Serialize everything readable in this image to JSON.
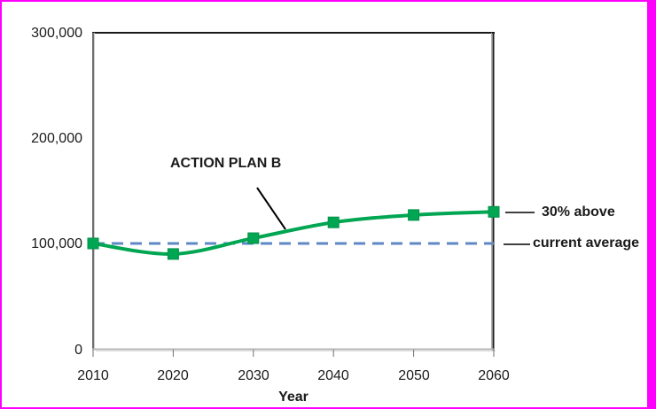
{
  "colors": {
    "frame_border": "#FF00FF",
    "series_green": "#00A651",
    "series_green_marker_border": "#00914A",
    "dashed_blue": "#5E88C4",
    "text": "#1a1a1a",
    "annotation_line": "#000000"
  },
  "chart_data": {
    "type": "line",
    "title": "",
    "xlabel": "Year",
    "ylabel": "",
    "x": [
      2010,
      2020,
      2030,
      2040,
      2050,
      2060
    ],
    "xtick_labels": [
      "2010",
      "2020",
      "2030",
      "2040",
      "2050",
      "2060"
    ],
    "yticks_top_to_bottom": [
      300000,
      200000,
      100000,
      0
    ],
    "ytick_labels": [
      "300,000",
      "200,000",
      "100,000",
      "0"
    ],
    "ylim": [
      0,
      300000
    ],
    "grid": false,
    "legend": "none",
    "series": [
      {
        "name": "ACTION PLAN B",
        "style": "solid-smooth",
        "marker": "square",
        "values": [
          100000,
          90000,
          105000,
          120000,
          127000,
          130000
        ]
      },
      {
        "name": "current average",
        "style": "dashed",
        "marker": "none",
        "constant_value": 100000
      }
    ],
    "annotations": [
      {
        "text": "ACTION PLAN B",
        "points_to": "rising part of curve between 2030 and 2040"
      },
      {
        "text": "30% above",
        "refers_to_value": 130000,
        "position": "right of plot at 2060 level"
      },
      {
        "text": "current average",
        "refers_to_value": 100000,
        "position": "right of plot at dashed line level"
      }
    ]
  }
}
